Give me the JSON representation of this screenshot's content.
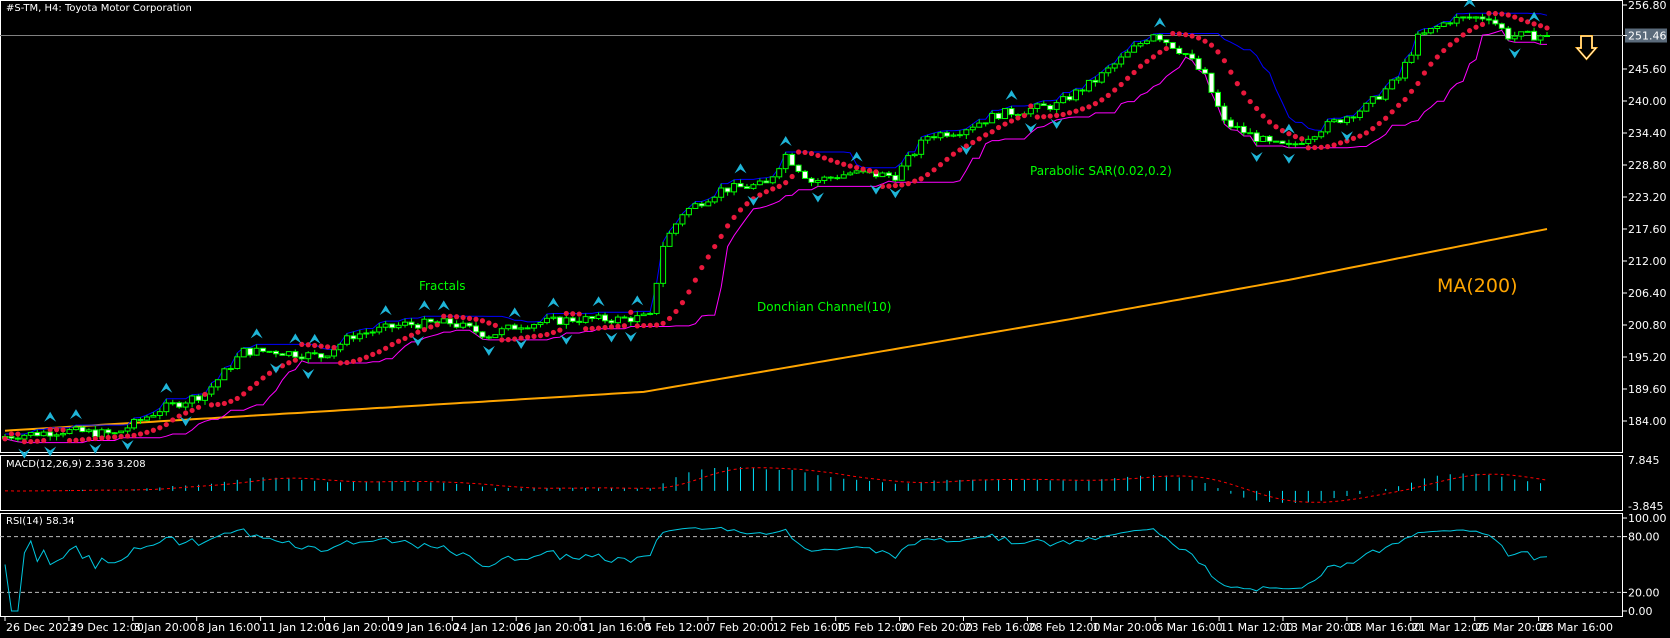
{
  "header": {
    "title": "#S-TM, H4:  Toyota Motor Corporation"
  },
  "annotations": {
    "fractals": "Fractals",
    "donchian": "Donchian Channel(10)",
    "sar": "Parabolic SAR(0.02,0.2)",
    "ma": "MA(200)"
  },
  "colors": {
    "background": "#000000",
    "candle": "#00ff00",
    "ma200": "#ffa500",
    "sar": "#e8183c",
    "donchian_upper": "#0000ff",
    "donchian_lower": "#ff00ff",
    "fractal": "#1fb5d8",
    "macd_hist": "#00e5ff",
    "macd_signal": "#ff0000",
    "rsi": "#00c8e0",
    "bid_line": "#808080"
  },
  "chart_data": [
    {
      "type": "candlestick",
      "symbol": "#S-TM",
      "timeframe": "H4",
      "current_price": "251.46",
      "signal_icon": "down-arrow-icon",
      "ylim": [
        184.0,
        256.8
      ],
      "yticks": [
        "256.80",
        "251.46",
        "245.60",
        "240.00",
        "234.40",
        "228.80",
        "223.20",
        "217.60",
        "212.00",
        "206.40",
        "200.80",
        "195.20",
        "189.60",
        "184.00"
      ],
      "xticks": [
        "26 Dec 2023",
        "29 Dec 12:00",
        "3 Jan 20:00",
        "8 Jan 16:00",
        "11 Jan 12:00",
        "16 Jan 20:00",
        "19 Jan 16:00",
        "24 Jan 12:00",
        "26 Jan 20:00",
        "31 Jan 16:00",
        "5 Feb 12:00",
        "7 Feb 20:00",
        "12 Feb 16:00",
        "15 Feb 12:00",
        "20 Feb 20:00",
        "23 Feb 16:00",
        "28 Feb 12:00",
        "1 Mar 20:00",
        "6 Mar 16:00",
        "11 Mar 12:00",
        "13 Mar 20:00",
        "18 Mar 16:00",
        "21 Mar 12:00",
        "25 Mar 20:00",
        "28 Mar 16:00"
      ],
      "bar_count": 240,
      "close_keypoints": [
        [
          0,
          181.3
        ],
        [
          9,
          182.3
        ],
        [
          17,
          181.7
        ],
        [
          24,
          186.0
        ],
        [
          31,
          188.8
        ],
        [
          37,
          196.2
        ],
        [
          42,
          196.2
        ],
        [
          49,
          195.3
        ],
        [
          54,
          199.0
        ],
        [
          62,
          200.9
        ],
        [
          69,
          201.2
        ],
        [
          75,
          199.0
        ],
        [
          80,
          200.9
        ],
        [
          88,
          201.8
        ],
        [
          95,
          201.8
        ],
        [
          100,
          202.2
        ],
        [
          102,
          214.8
        ],
        [
          105,
          220.4
        ],
        [
          111,
          224.5
        ],
        [
          118,
          225.4
        ],
        [
          121,
          230.6
        ],
        [
          125,
          225.9
        ],
        [
          131,
          227.4
        ],
        [
          138,
          226.9
        ],
        [
          143,
          233.9
        ],
        [
          148,
          234.9
        ],
        [
          154,
          237.7
        ],
        [
          163,
          239.3
        ],
        [
          169,
          243.6
        ],
        [
          173,
          247.3
        ],
        [
          178,
          252.0
        ],
        [
          183,
          248.2
        ],
        [
          186,
          244.2
        ],
        [
          189,
          236.2
        ],
        [
          196,
          232.5
        ],
        [
          199,
          231.9
        ],
        [
          204,
          235.2
        ],
        [
          211,
          239.0
        ],
        [
          216,
          244.0
        ],
        [
          219,
          251.0
        ],
        [
          224,
          254.2
        ],
        [
          230,
          254.8
        ],
        [
          233,
          251.4
        ],
        [
          239,
          251.46
        ]
      ],
      "ma200_keypoints": [
        [
          0,
          182.3
        ],
        [
          99,
          189.1
        ],
        [
          165,
          201.8
        ],
        [
          199,
          208.7
        ],
        [
          239,
          217.6
        ]
      ],
      "indicators": [
        "Fractals",
        "Donchian Channel(10)",
        "Parabolic SAR(0.02,0.2)",
        "MA(200)"
      ]
    },
    {
      "type": "bar",
      "title": "MACD(12,26,9) 2.336 3.208",
      "ylim": [
        -3.845,
        7.845
      ],
      "yticks": [
        "7.845",
        "-3.845"
      ],
      "last_macd": 2.336,
      "last_signal": 3.208
    },
    {
      "type": "line",
      "title": "RSI(14) 58.34",
      "ylim": [
        0,
        100
      ],
      "yticks": [
        "100.00",
        "80.00",
        "20.00",
        "0.00"
      ],
      "levels": [
        80,
        20
      ],
      "last": 58.34
    }
  ]
}
